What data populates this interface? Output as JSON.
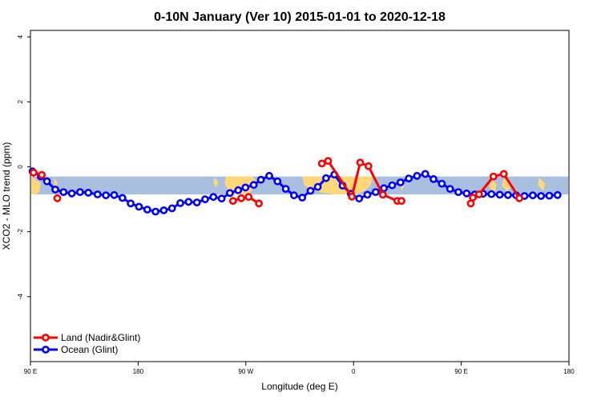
{
  "chart_data": {
    "type": "line",
    "title": "0-10N January (Ver 10)   2015-01-01 to 2020-12-18",
    "xlabel": "Longitude (deg E)",
    "ylabel": "XCO2 - MLO trend (ppm)",
    "xlim": [
      90,
      450
    ],
    "ylim": [
      -6,
      4.2
    ],
    "x_ticks": [
      {
        "value": 90,
        "label": "90 E"
      },
      {
        "value": 180,
        "label": "180"
      },
      {
        "value": 270,
        "label": "90 W"
      },
      {
        "value": 360,
        "label": "0"
      },
      {
        "value": 450,
        "label": "90 E"
      },
      {
        "value": 540,
        "label": "180"
      }
    ],
    "y_ticks": [
      {
        "value": 4,
        "label": "4"
      },
      {
        "value": 2,
        "label": "2"
      },
      {
        "value": 0,
        "label": "0"
      },
      {
        "value": -2,
        "label": "-2"
      },
      {
        "value": -4,
        "label": "-4"
      }
    ],
    "legend_position": "bottom-left",
    "latitude_band": {
      "top": -0.3,
      "bottom": -0.85,
      "ocean_color": "#a9bfdf",
      "land_color": "#ffd778"
    },
    "series": [
      {
        "name": "Land (Nadir&Glint)",
        "color": "#ff0000",
        "segments": [
          {
            "x": [
              93,
              101
            ],
            "y": [
              -0.18,
              -0.25
            ]
          },
          {
            "x": [
              116
            ],
            "y": [
              -0.97
            ]
          },
          {
            "x": [
              286,
              294,
              301,
              311
            ],
            "y": [
              -1.05,
              -0.97,
              -0.93,
              -1.13
            ]
          },
          {
            "x": [
              372,
              378,
              401,
              409,
              417,
              431,
              445,
              449
            ],
            "y": [
              0.1,
              0.18,
              -0.92,
              0.13,
              0.02,
              -0.86,
              -1.05,
              -1.05
            ]
          },
          {
            "x": [
              516,
              518,
              524,
              538,
              548,
              563
            ],
            "y": [
              -1.13,
              -0.95,
              -0.85,
              -0.3,
              -0.22,
              -0.97
            ]
          }
        ]
      },
      {
        "name": "Ocean (Glint)",
        "color": "#0000ff",
        "segments": [
          {
            "x": [
              92,
              100,
              106,
              114,
              122,
              130,
              138,
              146,
              155,
              163,
              171,
              179,
              187,
              195,
              203,
              211,
              219,
              227,
              235,
              243,
              251,
              259,
              267,
              275,
              283,
              291,
              298,
              306,
              313,
              321,
              329,
              337,
              345,
              353,
              361,
              368,
              376,
              384,
              392,
              400,
              408,
              416,
              424,
              432,
              440,
              448,
              456,
              464,
              472,
              480,
              488,
              496,
              504,
              512,
              520,
              528,
              536,
              544,
              552,
              560,
              568,
              576,
              584,
              592,
              600
            ],
            "y": [
              -0.14,
              -0.3,
              -0.45,
              -0.7,
              -0.78,
              -0.82,
              -0.78,
              -0.8,
              -0.85,
              -0.88,
              -0.87,
              -0.96,
              -1.13,
              -1.23,
              -1.32,
              -1.38,
              -1.34,
              -1.28,
              -1.12,
              -1.08,
              -1.1,
              -1.0,
              -0.93,
              -0.98,
              -0.81,
              -0.72,
              -0.64,
              -0.56,
              -0.4,
              -0.28,
              -0.45,
              -0.68,
              -0.88,
              -0.95,
              -0.74,
              -0.62,
              -0.35,
              -0.24,
              -0.58,
              -0.83,
              -0.98,
              -0.86,
              -0.78,
              -0.66,
              -0.57,
              -0.48,
              -0.36,
              -0.28,
              -0.22,
              -0.38,
              -0.52,
              -0.68,
              -0.78,
              -0.82,
              -0.85,
              -0.83,
              -0.84,
              -0.86,
              -0.87,
              -0.88,
              -0.9,
              -0.88,
              -0.9,
              -0.89,
              -0.87
            ]
          }
        ]
      }
    ]
  }
}
